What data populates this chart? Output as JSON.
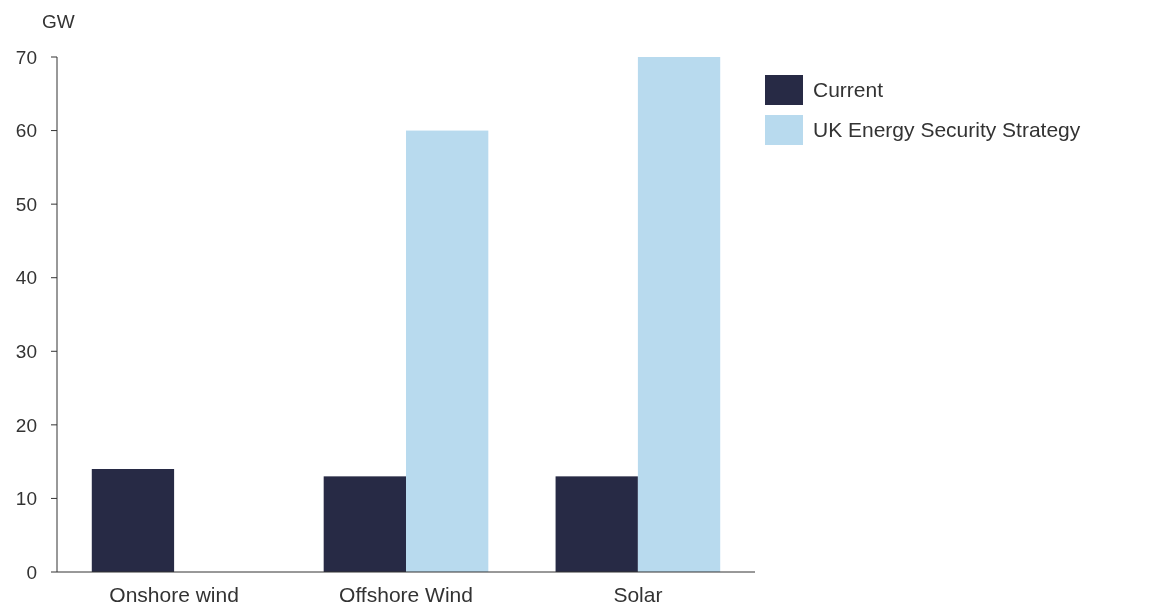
{
  "chart_data": {
    "type": "bar",
    "ylabel": "GW",
    "categories": [
      "Onshore wind",
      "Offshore Wind",
      "Solar"
    ],
    "series": [
      {
        "name": "Current",
        "color": "#272a45",
        "values": [
          14,
          13,
          13
        ]
      },
      {
        "name": "UK Energy Security Strategy",
        "color": "#b8daee",
        "values": [
          null,
          60,
          70
        ]
      }
    ],
    "ylim": [
      0,
      70
    ],
    "yticks": [
      0,
      10,
      20,
      30,
      40,
      50,
      60,
      70
    ],
    "grid": false,
    "legend": "top right"
  }
}
